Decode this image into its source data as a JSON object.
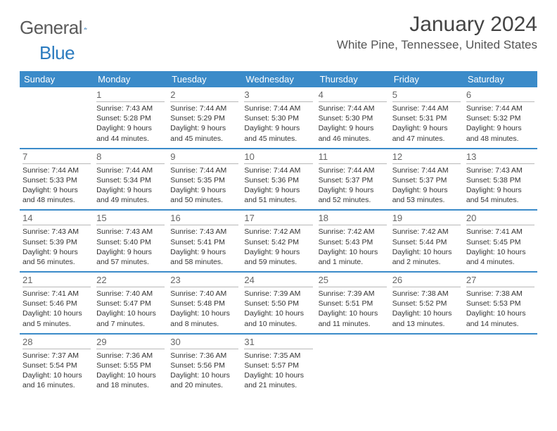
{
  "brand": {
    "word1": "General",
    "word2": "Blue"
  },
  "title": "January 2024",
  "location": "White Pine, Tennessee, United States",
  "colors": {
    "header_bg": "#3b8bc9",
    "header_text": "#ffffff",
    "text": "#333333",
    "daynum": "#666666",
    "rule": "#b8b8b8",
    "brand_gray": "#5a5a5a",
    "brand_blue": "#2b7bbf",
    "background": "#ffffff"
  },
  "typography": {
    "title_fontsize": 30,
    "location_fontsize": 17,
    "dow_fontsize": 13,
    "daynum_fontsize": 13,
    "info_fontsize": 10.5
  },
  "layout": {
    "columns": 7,
    "rows": 5
  },
  "dow": [
    "Sunday",
    "Monday",
    "Tuesday",
    "Wednesday",
    "Thursday",
    "Friday",
    "Saturday"
  ],
  "weeks": [
    [
      {
        "n": "",
        "sunrise": "",
        "sunset": "",
        "daylight1": "",
        "daylight2": ""
      },
      {
        "n": "1",
        "sunrise": "Sunrise: 7:43 AM",
        "sunset": "Sunset: 5:28 PM",
        "daylight1": "Daylight: 9 hours",
        "daylight2": "and 44 minutes."
      },
      {
        "n": "2",
        "sunrise": "Sunrise: 7:44 AM",
        "sunset": "Sunset: 5:29 PM",
        "daylight1": "Daylight: 9 hours",
        "daylight2": "and 45 minutes."
      },
      {
        "n": "3",
        "sunrise": "Sunrise: 7:44 AM",
        "sunset": "Sunset: 5:30 PM",
        "daylight1": "Daylight: 9 hours",
        "daylight2": "and 45 minutes."
      },
      {
        "n": "4",
        "sunrise": "Sunrise: 7:44 AM",
        "sunset": "Sunset: 5:30 PM",
        "daylight1": "Daylight: 9 hours",
        "daylight2": "and 46 minutes."
      },
      {
        "n": "5",
        "sunrise": "Sunrise: 7:44 AM",
        "sunset": "Sunset: 5:31 PM",
        "daylight1": "Daylight: 9 hours",
        "daylight2": "and 47 minutes."
      },
      {
        "n": "6",
        "sunrise": "Sunrise: 7:44 AM",
        "sunset": "Sunset: 5:32 PM",
        "daylight1": "Daylight: 9 hours",
        "daylight2": "and 48 minutes."
      }
    ],
    [
      {
        "n": "7",
        "sunrise": "Sunrise: 7:44 AM",
        "sunset": "Sunset: 5:33 PM",
        "daylight1": "Daylight: 9 hours",
        "daylight2": "and 48 minutes."
      },
      {
        "n": "8",
        "sunrise": "Sunrise: 7:44 AM",
        "sunset": "Sunset: 5:34 PM",
        "daylight1": "Daylight: 9 hours",
        "daylight2": "and 49 minutes."
      },
      {
        "n": "9",
        "sunrise": "Sunrise: 7:44 AM",
        "sunset": "Sunset: 5:35 PM",
        "daylight1": "Daylight: 9 hours",
        "daylight2": "and 50 minutes."
      },
      {
        "n": "10",
        "sunrise": "Sunrise: 7:44 AM",
        "sunset": "Sunset: 5:36 PM",
        "daylight1": "Daylight: 9 hours",
        "daylight2": "and 51 minutes."
      },
      {
        "n": "11",
        "sunrise": "Sunrise: 7:44 AM",
        "sunset": "Sunset: 5:37 PM",
        "daylight1": "Daylight: 9 hours",
        "daylight2": "and 52 minutes."
      },
      {
        "n": "12",
        "sunrise": "Sunrise: 7:44 AM",
        "sunset": "Sunset: 5:37 PM",
        "daylight1": "Daylight: 9 hours",
        "daylight2": "and 53 minutes."
      },
      {
        "n": "13",
        "sunrise": "Sunrise: 7:43 AM",
        "sunset": "Sunset: 5:38 PM",
        "daylight1": "Daylight: 9 hours",
        "daylight2": "and 54 minutes."
      }
    ],
    [
      {
        "n": "14",
        "sunrise": "Sunrise: 7:43 AM",
        "sunset": "Sunset: 5:39 PM",
        "daylight1": "Daylight: 9 hours",
        "daylight2": "and 56 minutes."
      },
      {
        "n": "15",
        "sunrise": "Sunrise: 7:43 AM",
        "sunset": "Sunset: 5:40 PM",
        "daylight1": "Daylight: 9 hours",
        "daylight2": "and 57 minutes."
      },
      {
        "n": "16",
        "sunrise": "Sunrise: 7:43 AM",
        "sunset": "Sunset: 5:41 PM",
        "daylight1": "Daylight: 9 hours",
        "daylight2": "and 58 minutes."
      },
      {
        "n": "17",
        "sunrise": "Sunrise: 7:42 AM",
        "sunset": "Sunset: 5:42 PM",
        "daylight1": "Daylight: 9 hours",
        "daylight2": "and 59 minutes."
      },
      {
        "n": "18",
        "sunrise": "Sunrise: 7:42 AM",
        "sunset": "Sunset: 5:43 PM",
        "daylight1": "Daylight: 10 hours",
        "daylight2": "and 1 minute."
      },
      {
        "n": "19",
        "sunrise": "Sunrise: 7:42 AM",
        "sunset": "Sunset: 5:44 PM",
        "daylight1": "Daylight: 10 hours",
        "daylight2": "and 2 minutes."
      },
      {
        "n": "20",
        "sunrise": "Sunrise: 7:41 AM",
        "sunset": "Sunset: 5:45 PM",
        "daylight1": "Daylight: 10 hours",
        "daylight2": "and 4 minutes."
      }
    ],
    [
      {
        "n": "21",
        "sunrise": "Sunrise: 7:41 AM",
        "sunset": "Sunset: 5:46 PM",
        "daylight1": "Daylight: 10 hours",
        "daylight2": "and 5 minutes."
      },
      {
        "n": "22",
        "sunrise": "Sunrise: 7:40 AM",
        "sunset": "Sunset: 5:47 PM",
        "daylight1": "Daylight: 10 hours",
        "daylight2": "and 7 minutes."
      },
      {
        "n": "23",
        "sunrise": "Sunrise: 7:40 AM",
        "sunset": "Sunset: 5:48 PM",
        "daylight1": "Daylight: 10 hours",
        "daylight2": "and 8 minutes."
      },
      {
        "n": "24",
        "sunrise": "Sunrise: 7:39 AM",
        "sunset": "Sunset: 5:50 PM",
        "daylight1": "Daylight: 10 hours",
        "daylight2": "and 10 minutes."
      },
      {
        "n": "25",
        "sunrise": "Sunrise: 7:39 AM",
        "sunset": "Sunset: 5:51 PM",
        "daylight1": "Daylight: 10 hours",
        "daylight2": "and 11 minutes."
      },
      {
        "n": "26",
        "sunrise": "Sunrise: 7:38 AM",
        "sunset": "Sunset: 5:52 PM",
        "daylight1": "Daylight: 10 hours",
        "daylight2": "and 13 minutes."
      },
      {
        "n": "27",
        "sunrise": "Sunrise: 7:38 AM",
        "sunset": "Sunset: 5:53 PM",
        "daylight1": "Daylight: 10 hours",
        "daylight2": "and 14 minutes."
      }
    ],
    [
      {
        "n": "28",
        "sunrise": "Sunrise: 7:37 AM",
        "sunset": "Sunset: 5:54 PM",
        "daylight1": "Daylight: 10 hours",
        "daylight2": "and 16 minutes."
      },
      {
        "n": "29",
        "sunrise": "Sunrise: 7:36 AM",
        "sunset": "Sunset: 5:55 PM",
        "daylight1": "Daylight: 10 hours",
        "daylight2": "and 18 minutes."
      },
      {
        "n": "30",
        "sunrise": "Sunrise: 7:36 AM",
        "sunset": "Sunset: 5:56 PM",
        "daylight1": "Daylight: 10 hours",
        "daylight2": "and 20 minutes."
      },
      {
        "n": "31",
        "sunrise": "Sunrise: 7:35 AM",
        "sunset": "Sunset: 5:57 PM",
        "daylight1": "Daylight: 10 hours",
        "daylight2": "and 21 minutes."
      },
      {
        "n": "",
        "sunrise": "",
        "sunset": "",
        "daylight1": "",
        "daylight2": ""
      },
      {
        "n": "",
        "sunrise": "",
        "sunset": "",
        "daylight1": "",
        "daylight2": ""
      },
      {
        "n": "",
        "sunrise": "",
        "sunset": "",
        "daylight1": "",
        "daylight2": ""
      }
    ]
  ]
}
